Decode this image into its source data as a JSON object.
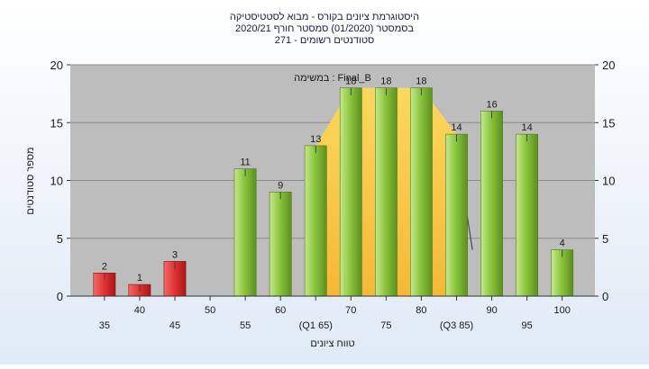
{
  "chart_data": {
    "type": "bar",
    "title_lines": [
      "היסטוגרמת ציונים בקורס - מבוא לסטטיסטיקה",
      "בסמסטר  (01/2020)  סמסטר חורף  2020/21",
      "סטודנטים רשומים - 271"
    ],
    "xlabel": "טווח ציונים",
    "ylabel": "מספר סטודנטים",
    "ylim": [
      0,
      20
    ],
    "yticks": [
      0,
      5,
      10,
      15,
      20
    ],
    "grid": "horizontal",
    "categories": [
      "35",
      "40",
      "45",
      "50",
      "55",
      "60",
      "(Q1 65)",
      "70",
      "75",
      "80",
      "(Q3 85)",
      "90",
      "95",
      "100"
    ],
    "values": [
      2,
      1,
      3,
      0,
      11,
      9,
      13,
      18,
      18,
      18,
      14,
      16,
      14,
      4
    ],
    "data_labels": [
      "2",
      "1",
      "3",
      "",
      "11",
      "9",
      "13",
      "18",
      "18",
      "18",
      "14",
      "16",
      "14",
      "4"
    ],
    "bar_colors": [
      "#e03131",
      "#e03131",
      "#e03131",
      "#e03131",
      "#8cc63f",
      "#8cc63f",
      "#8cc63f",
      "#8cc63f",
      "#8cc63f",
      "#8cc63f",
      "#8cc63f",
      "#8cc63f",
      "#8cc63f",
      "#8cc63f"
    ],
    "annotation": "במשימה : Final_B",
    "iqr_band": {
      "from_category": "(Q1 65)",
      "to_category": "(Q3 85)",
      "color": "#ffc940"
    },
    "colors": {
      "plot_background": "#bdbdbd",
      "grid": "#8c8c8c",
      "fail_bar": "#e03131",
      "pass_bar": "#8cc63f"
    }
  }
}
